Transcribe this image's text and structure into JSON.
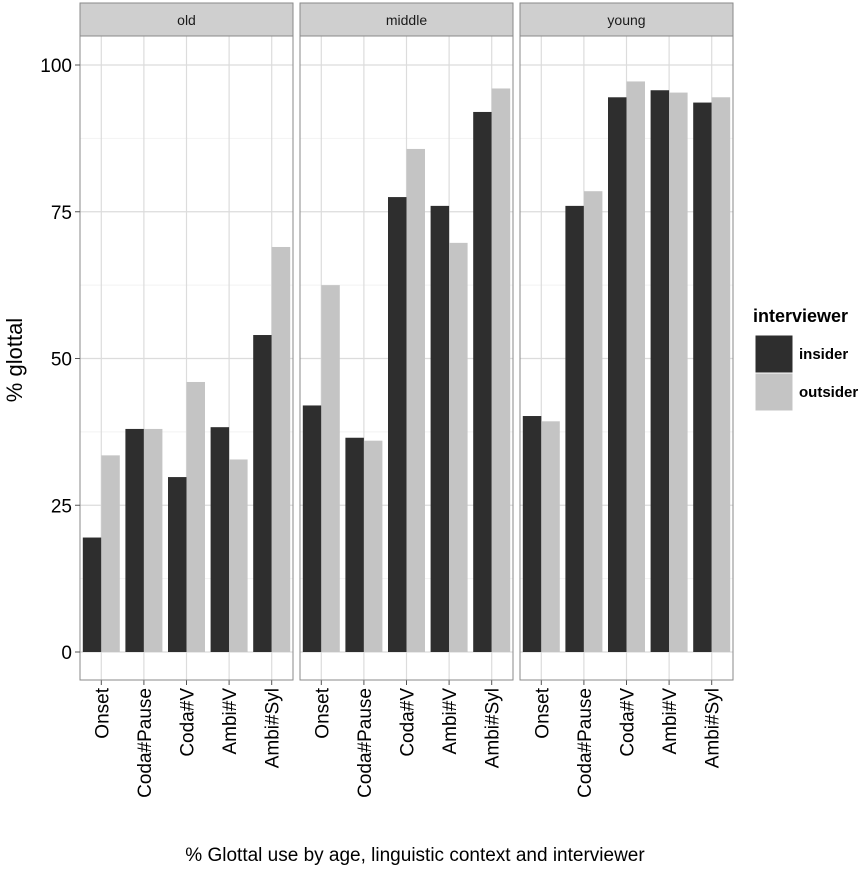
{
  "chart_data": {
    "type": "bar",
    "facet_by": "age",
    "panels": [
      {
        "label": "old",
        "categories": [
          "Onset",
          "Coda#Pause",
          "Coda#V",
          "Ambi#V",
          "Ambi#Syl"
        ],
        "series": [
          {
            "name": "insider",
            "values": [
              19.5,
              38,
              29.8,
              38.3,
              54
            ]
          },
          {
            "name": "outsider",
            "values": [
              33.5,
              38,
              46,
              32.8,
              69
            ]
          }
        ]
      },
      {
        "label": "middle",
        "categories": [
          "Onset",
          "Coda#Pause",
          "Coda#V",
          "Ambi#V",
          "Ambi#Syl"
        ],
        "series": [
          {
            "name": "insider",
            "values": [
              42,
              36.5,
              77.5,
              76,
              92
            ]
          },
          {
            "name": "outsider",
            "values": [
              62.5,
              36,
              85.7,
              69.7,
              96
            ]
          }
        ]
      },
      {
        "label": "young",
        "categories": [
          "Onset",
          "Coda#Pause",
          "Coda#V",
          "Ambi#V",
          "Ambi#Syl"
        ],
        "series": [
          {
            "name": "insider",
            "values": [
              40.2,
              76,
              94.5,
              95.7,
              93.6
            ]
          },
          {
            "name": "outsider",
            "values": [
              39.3,
              78.5,
              97.2,
              95.3,
              94.5
            ]
          }
        ]
      }
    ],
    "title": "",
    "xlabel": "% Glottal use by age, linguistic context and interviewer",
    "ylabel": "% glottal",
    "ylim": [
      0,
      104.5
    ],
    "yticks": [
      0,
      25,
      50,
      75,
      100
    ],
    "grid": true,
    "legend": {
      "title": "interviewer",
      "placement": "right",
      "entries": [
        "insider",
        "outsider"
      ]
    },
    "colors": {
      "insider": "#2e2e2e",
      "outsider": "#c4c4c4"
    }
  }
}
